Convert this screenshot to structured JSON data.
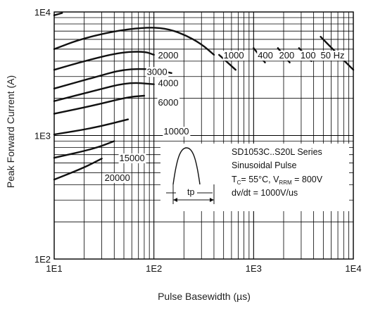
{
  "chart_data": {
    "type": "line",
    "title": "",
    "xlabel": "Pulse Basewidth (µs)",
    "ylabel": "Peak Forward Current (A)",
    "xscale": "log",
    "yscale": "log",
    "xlim": [
      10,
      10000
    ],
    "ylim": [
      100,
      10000
    ],
    "x_ticks": [
      "1E1",
      "1E2",
      "1E3",
      "1E4"
    ],
    "y_ticks": [
      "1E2",
      "1E3",
      "1E4"
    ],
    "grid": true,
    "series": [
      {
        "name": "50 Hz",
        "points": [
          [
            10,
            9400
          ],
          [
            12,
            9800
          ]
        ]
      },
      {
        "name": "50 Hz",
        "points": [
          [
            10,
            5000
          ],
          [
            18,
            6000
          ],
          [
            40,
            7000
          ],
          [
            80,
            7500
          ],
          [
            130,
            7400
          ],
          [
            200,
            6600
          ],
          [
            300,
            5500
          ],
          [
            400,
            4500
          ]
        ]
      },
      {
        "name": "50 Hz",
        "points": [
          [
            4700,
            6300
          ],
          [
            6700,
            4700
          ],
          [
            10000,
            3400
          ]
        ]
      },
      {
        "name": "100",
        "points": [
          [
            2850,
            5100
          ],
          [
            3800,
            4000
          ]
        ]
      },
      {
        "name": "200",
        "points": [
          [
            1750,
            5100
          ],
          [
            2300,
            3900
          ]
        ]
      },
      {
        "name": "400",
        "points": [
          [
            1000,
            5100
          ],
          [
            1300,
            3900
          ]
        ]
      },
      {
        "name": "1000",
        "points": [
          [
            450,
            4500
          ],
          [
            660,
            3400
          ]
        ]
      },
      {
        "name": "2000",
        "points": [
          [
            10,
            3400
          ],
          [
            20,
            4000
          ],
          [
            45,
            4700
          ],
          [
            80,
            4800
          ],
          [
            100,
            4500
          ]
        ]
      },
      {
        "name": "3000",
        "points": [
          [
            10,
            2400
          ],
          [
            25,
            2950
          ],
          [
            50,
            3450
          ],
          [
            100,
            3450
          ],
          [
            150,
            3200
          ]
        ]
      },
      {
        "name": "4000",
        "points": [
          [
            10,
            1900
          ],
          [
            25,
            2300
          ],
          [
            55,
            2700
          ],
          [
            100,
            2600
          ]
        ]
      },
      {
        "name": "6000",
        "points": [
          [
            10,
            1500
          ],
          [
            25,
            1750
          ],
          [
            55,
            2050
          ],
          [
            80,
            2100
          ]
        ]
      },
      {
        "name": "10000",
        "points": [
          [
            10,
            1020
          ],
          [
            25,
            1150
          ],
          [
            55,
            1350
          ]
        ]
      },
      {
        "name": "15000",
        "points": [
          [
            10,
            660
          ],
          [
            25,
            780
          ],
          [
            40,
            900
          ]
        ]
      },
      {
        "name": "20000",
        "points": [
          [
            10,
            440
          ],
          [
            20,
            550
          ],
          [
            30,
            650
          ]
        ]
      }
    ],
    "curve_labels": [
      {
        "text": "2000",
        "x": 110,
        "y": 4200
      },
      {
        "text": "3000",
        "x": 85,
        "y": 3100
      },
      {
        "text": "4000",
        "x": 110,
        "y": 2500
      },
      {
        "text": "6000",
        "x": 110,
        "y": 1750
      },
      {
        "text": "10000",
        "x": 125,
        "y": 1020
      },
      {
        "text": "15000",
        "x": 45,
        "y": 620
      },
      {
        "text": "20000",
        "x": 32,
        "y": 430
      },
      {
        "text": "1000",
        "x": 500,
        "y": 4200
      },
      {
        "text": "400",
        "x": 1100,
        "y": 4200
      },
      {
        "text": "200",
        "x": 1800,
        "y": 4200
      },
      {
        "text": "100",
        "x": 2950,
        "y": 4200
      },
      {
        "text": "50 Hz",
        "x": 4700,
        "y": 4200
      }
    ],
    "annotations": [
      "SD1053C..S20L Series",
      "Sinusoidal Pulse",
      "TC= 55°C, VRRM = 800V",
      "dv/dt = 1000V/us"
    ],
    "inset_label": "tp"
  }
}
